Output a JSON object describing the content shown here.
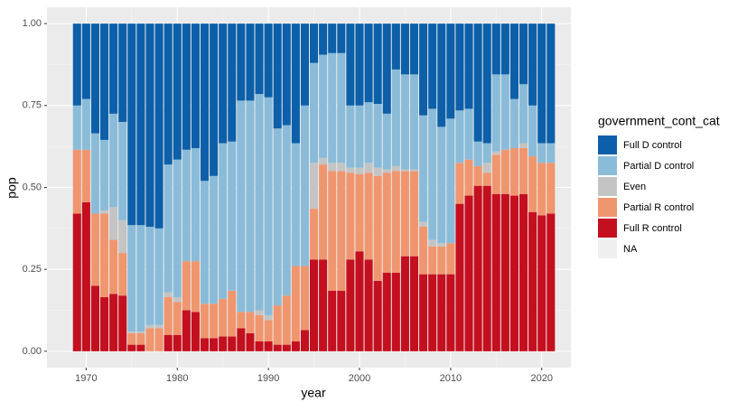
{
  "chart_data": {
    "type": "stacked_bar",
    "x": [
      1969,
      1970,
      1971,
      1972,
      1973,
      1974,
      1975,
      1976,
      1977,
      1978,
      1979,
      1980,
      1981,
      1982,
      1983,
      1984,
      1985,
      1986,
      1987,
      1988,
      1989,
      1990,
      1991,
      1992,
      1993,
      1994,
      1995,
      1996,
      1997,
      1998,
      1999,
      2000,
      2001,
      2002,
      2003,
      2004,
      2005,
      2006,
      2007,
      2008,
      2009,
      2010,
      2011,
      2012,
      2013,
      2014,
      2015,
      2016,
      2017,
      2018,
      2019,
      2020,
      2021
    ],
    "xlabel": "year",
    "ylabel": "pop",
    "legend_title": "government_cont_cat",
    "xlim": [
      1965.7,
      2023.2
    ],
    "xticks": [
      1970,
      1980,
      1990,
      2000,
      2010,
      2020
    ],
    "ylim": [
      -0.05,
      1.05
    ],
    "yticks": [
      {
        "value": 0,
        "label": "0.00"
      },
      {
        "value": 0.25,
        "label": "0.25"
      },
      {
        "value": 0.5,
        "label": "0.50"
      },
      {
        "value": 0.75,
        "label": "0.75"
      },
      {
        "value": 1,
        "label": "1.00"
      }
    ],
    "grid": true,
    "legend": "right",
    "series": [
      {
        "name": "Full D control",
        "color": "#0c5fa8",
        "values": [
          0.25,
          0.23,
          0.335,
          0.355,
          0.275,
          0.3,
          0.615,
          0.615,
          0.62,
          0.625,
          0.43,
          0.415,
          0.385,
          0.38,
          0.48,
          0.465,
          0.365,
          0.36,
          0.235,
          0.235,
          0.215,
          0.225,
          0.32,
          0.31,
          0.365,
          0.25,
          0.12,
          0.095,
          0.09,
          0.09,
          0.25,
          0.25,
          0.24,
          0.245,
          0.275,
          0.14,
          0.155,
          0.155,
          0.28,
          0.26,
          0.315,
          0.29,
          0.265,
          0.26,
          0.36,
          0.365,
          0.155,
          0.155,
          0.23,
          0.185,
          0.25,
          0.365,
          0.365
        ]
      },
      {
        "name": "Partial D control",
        "color": "#8abcd9",
        "values": [
          0.135,
          0.155,
          0.245,
          0.215,
          0.285,
          0.3,
          0.325,
          0.325,
          0.3,
          0.295,
          0.39,
          0.42,
          0.34,
          0.345,
          0.375,
          0.39,
          0.475,
          0.455,
          0.645,
          0.645,
          0.66,
          0.665,
          0.54,
          0.52,
          0.375,
          0.49,
          0.305,
          0.315,
          0.335,
          0.335,
          0.19,
          0.19,
          0.185,
          0.195,
          0.17,
          0.295,
          0.29,
          0.29,
          0.325,
          0.4,
          0.355,
          0.38,
          0.16,
          0.155,
          0.075,
          0.06,
          0.235,
          0.23,
          0.15,
          0.18,
          0.155,
          0.06,
          0.06
        ]
      },
      {
        "name": "Even",
        "color": "#c4c4c4",
        "values": [
          0,
          0,
          0,
          0.01,
          0.1,
          0.1,
          0.005,
          0.005,
          0.01,
          0.01,
          0.015,
          0.015,
          0,
          0,
          0,
          0,
          0,
          0,
          0,
          0,
          0.015,
          0.015,
          0,
          0,
          0,
          0,
          0.14,
          0.02,
          0.025,
          0.025,
          0.015,
          0.02,
          0.03,
          0.025,
          0.01,
          0.015,
          0.005,
          0.005,
          0.015,
          0.02,
          0.01,
          0,
          0,
          0,
          0,
          0.03,
          0.01,
          0,
          0,
          0.015,
          0,
          0,
          0
        ]
      },
      {
        "name": "Partial R control",
        "color": "#f0966f",
        "values": [
          0.195,
          0.16,
          0.22,
          0.255,
          0.165,
          0.13,
          0.035,
          0.035,
          0.07,
          0.07,
          0.115,
          0.1,
          0.15,
          0.155,
          0.105,
          0.105,
          0.115,
          0.14,
          0.05,
          0.065,
          0.08,
          0.065,
          0.12,
          0.15,
          0.23,
          0.195,
          0.155,
          0.29,
          0.365,
          0.365,
          0.265,
          0.235,
          0.265,
          0.32,
          0.305,
          0.31,
          0.26,
          0.26,
          0.145,
          0.085,
          0.085,
          0.095,
          0.125,
          0.11,
          0.06,
          0.04,
          0.12,
          0.135,
          0.145,
          0.14,
          0.17,
          0.16,
          0.155
        ]
      },
      {
        "name": "Full R control",
        "color": "#c40f1f",
        "values": [
          0.42,
          0.455,
          0.2,
          0.165,
          0.175,
          0.17,
          0.02,
          0.02,
          0,
          0,
          0.05,
          0.05,
          0.125,
          0.12,
          0.04,
          0.04,
          0.045,
          0.045,
          0.07,
          0.055,
          0.03,
          0.03,
          0.02,
          0.02,
          0.03,
          0.065,
          0.28,
          0.28,
          0.185,
          0.185,
          0.28,
          0.305,
          0.28,
          0.215,
          0.24,
          0.24,
          0.29,
          0.29,
          0.235,
          0.235,
          0.235,
          0.235,
          0.45,
          0.475,
          0.505,
          0.505,
          0.48,
          0.48,
          0.475,
          0.48,
          0.425,
          0.415,
          0.42
        ]
      },
      {
        "name": "NA",
        "color": "#efefef",
        "values": [
          0,
          0,
          0,
          0,
          0,
          0,
          0,
          0,
          0,
          0,
          0,
          0,
          0,
          0,
          0,
          0,
          0,
          0,
          0,
          0,
          0,
          0,
          0,
          0,
          0,
          0,
          0,
          0,
          0,
          0,
          0,
          0,
          0,
          0,
          0,
          0,
          0,
          0,
          0,
          0,
          0,
          0,
          0,
          0,
          0,
          0,
          0,
          0,
          0,
          0,
          0,
          0,
          0
        ]
      }
    ]
  }
}
